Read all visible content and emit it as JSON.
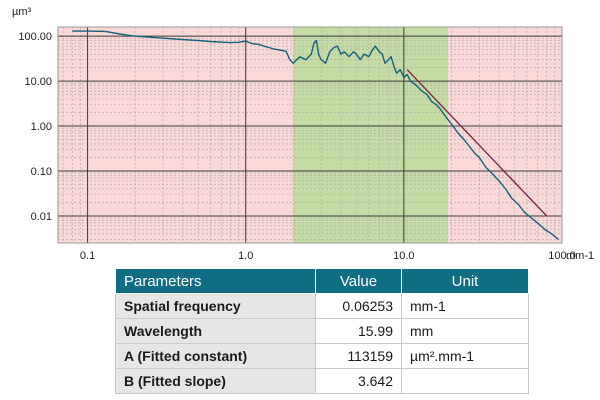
{
  "chart_data": {
    "type": "line",
    "title": "",
    "xlabel": "",
    "ylabel": "",
    "x_unit": "mm-1",
    "y_unit": "µm³",
    "x_scale": "log",
    "y_scale": "log",
    "xlim": [
      0.065,
      100
    ],
    "ylim": [
      0.0025,
      160
    ],
    "x_ticks": [
      0.1,
      1,
      10,
      100
    ],
    "x_tick_labels": [
      "0.1",
      "1.0",
      "10.0",
      "100.0"
    ],
    "y_ticks": [
      100,
      10,
      1,
      0.1,
      0.01
    ],
    "y_tick_labels": [
      "100.00",
      "10.00",
      "1.00",
      "0.10",
      "0.01"
    ],
    "grid": true,
    "band": {
      "x_from": 2.0,
      "x_to": 19.0,
      "color": "#c4dca4"
    },
    "background_color": "#fbd8d8",
    "series_color": "#15607a",
    "fit_line_color": "#7a2040",
    "series": [
      {
        "values": [
          [
            0.08,
            130
          ],
          [
            0.1,
            130
          ],
          [
            0.13,
            128
          ],
          [
            0.16,
            112
          ],
          [
            0.2,
            100
          ],
          [
            0.25,
            95
          ],
          [
            0.3,
            90
          ],
          [
            0.4,
            84
          ],
          [
            0.5,
            80
          ],
          [
            0.6,
            76
          ],
          [
            0.7,
            74
          ],
          [
            0.8,
            72
          ],
          [
            0.9,
            73
          ],
          [
            1.0,
            78
          ],
          [
            1.1,
            68
          ],
          [
            1.2,
            66
          ],
          [
            1.3,
            60
          ],
          [
            1.4,
            56
          ],
          [
            1.5,
            52
          ],
          [
            1.6,
            50
          ],
          [
            1.7,
            48
          ],
          [
            1.8,
            46
          ],
          [
            1.9,
            30
          ],
          [
            2.0,
            25
          ],
          [
            2.1,
            30
          ],
          [
            2.2,
            35
          ],
          [
            2.4,
            30
          ],
          [
            2.6,
            40
          ],
          [
            2.7,
            70
          ],
          [
            2.8,
            80
          ],
          [
            2.9,
            38
          ],
          [
            3.0,
            30
          ],
          [
            3.2,
            25
          ],
          [
            3.4,
            45
          ],
          [
            3.6,
            55
          ],
          [
            3.8,
            60
          ],
          [
            4.0,
            40
          ],
          [
            4.2,
            45
          ],
          [
            4.5,
            35
          ],
          [
            4.8,
            45
          ],
          [
            5.0,
            40
          ],
          [
            5.3,
            30
          ],
          [
            5.6,
            40
          ],
          [
            6.0,
            35
          ],
          [
            6.3,
            48
          ],
          [
            6.6,
            60
          ],
          [
            7.0,
            45
          ],
          [
            7.3,
            40
          ],
          [
            7.6,
            25
          ],
          [
            8.0,
            30
          ],
          [
            8.3,
            35
          ],
          [
            8.7,
            20
          ],
          [
            9.0,
            15
          ],
          [
            9.5,
            18
          ],
          [
            10.0,
            12
          ],
          [
            10.5,
            14
          ],
          [
            11.0,
            10
          ],
          [
            12.0,
            8
          ],
          [
            13.0,
            6
          ],
          [
            14.0,
            5
          ],
          [
            15.0,
            3.5
          ],
          [
            16.0,
            3.0
          ],
          [
            17.0,
            2.4
          ],
          [
            18.0,
            1.8
          ],
          [
            19.0,
            1.4
          ],
          [
            20.0,
            1.1
          ],
          [
            22.0,
            0.7
          ],
          [
            24.0,
            0.5
          ],
          [
            26.0,
            0.35
          ],
          [
            28.0,
            0.25
          ],
          [
            30.0,
            0.2
          ],
          [
            33.0,
            0.12
          ],
          [
            36.0,
            0.09
          ],
          [
            40.0,
            0.06
          ],
          [
            44.0,
            0.04
          ],
          [
            48.0,
            0.025
          ],
          [
            53.0,
            0.018
          ],
          [
            58.0,
            0.012
          ],
          [
            64.0,
            0.009
          ],
          [
            70.0,
            0.007
          ],
          [
            78.0,
            0.005
          ],
          [
            86.0,
            0.004
          ],
          [
            95.0,
            0.003
          ]
        ]
      }
    ],
    "fit_line": [
      [
        10.5,
        18
      ],
      [
        80.0,
        0.01
      ]
    ]
  },
  "table": {
    "headers": [
      "Parameters",
      "Value",
      "Unit"
    ],
    "rows": [
      [
        "Spatial frequency",
        "0.06253",
        "mm-1"
      ],
      [
        "Wavelength",
        "15.99",
        "mm"
      ],
      [
        "A (Fitted constant)",
        "113159",
        "µm².mm-1"
      ],
      [
        "B (Fitted slope)",
        "3.642",
        ""
      ]
    ]
  }
}
